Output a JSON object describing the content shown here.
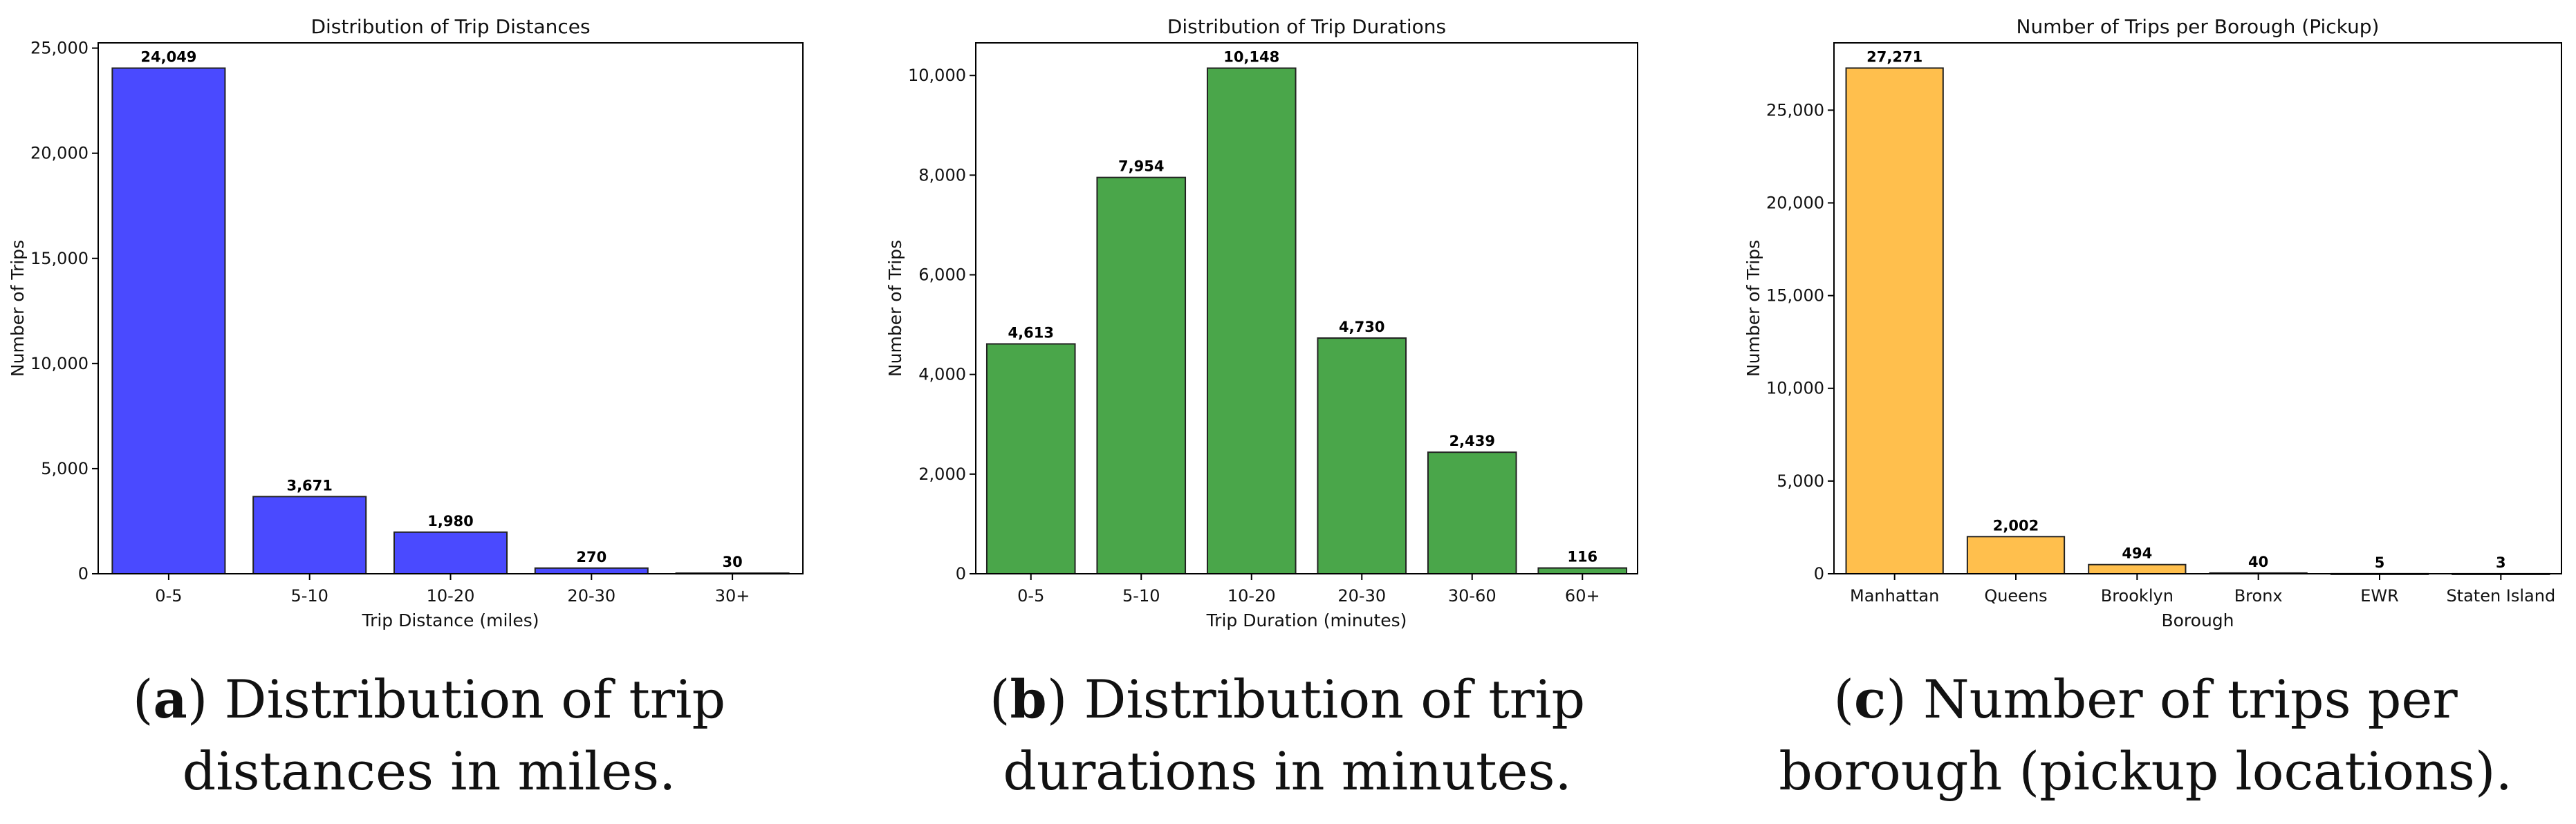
{
  "panels": [
    {
      "caption": {
        "letter": "a",
        "text": "Distribution of trip distances in miles."
      },
      "chart_data": {
        "type": "bar",
        "title": "Distribution of Trip Distances",
        "xlabel": "Trip Distance (miles)",
        "ylabel": "Number of Trips",
        "categories": [
          "0-5",
          "5-10",
          "10-20",
          "20-30",
          "30+"
        ],
        "values": [
          24049,
          3671,
          1980,
          270,
          30
        ],
        "value_labels": [
          "24,049",
          "3,671",
          "1,980",
          "270",
          "30"
        ],
        "yticks": [
          0,
          5000,
          10000,
          15000,
          20000,
          25000
        ],
        "ytick_labels": [
          "0",
          "5,000",
          "10,000",
          "15,000",
          "20,000",
          "25,000"
        ],
        "ylim": [
          0,
          25250
        ],
        "bar_color": "#4a4aff",
        "grid": false
      }
    },
    {
      "caption": {
        "letter": "b",
        "text": "Distribution of trip durations in minutes."
      },
      "chart_data": {
        "type": "bar",
        "title": "Distribution of Trip Durations",
        "xlabel": "Trip Duration (minutes)",
        "ylabel": "Number of Trips",
        "categories": [
          "0-5",
          "5-10",
          "10-20",
          "20-30",
          "30-60",
          "60+"
        ],
        "values": [
          4613,
          7954,
          10148,
          4730,
          2439,
          116
        ],
        "value_labels": [
          "4,613",
          "7,954",
          "10,148",
          "4,730",
          "2,439",
          "116"
        ],
        "yticks": [
          0,
          2000,
          4000,
          6000,
          8000,
          10000
        ],
        "ytick_labels": [
          "0",
          "2,000",
          "4,000",
          "6,000",
          "8,000",
          "10,000"
        ],
        "ylim": [
          0,
          10655
        ],
        "bar_color": "#4aa64a",
        "grid": false
      }
    },
    {
      "caption": {
        "letter": "c",
        "text": "Number of trips per borough (pickup locations)."
      },
      "chart_data": {
        "type": "bar",
        "title": "Number of Trips per Borough (Pickup)",
        "xlabel": "Borough",
        "ylabel": "Number of Trips",
        "categories": [
          "Manhattan",
          "Queens",
          "Brooklyn",
          "Bronx",
          "EWR",
          "Staten Island"
        ],
        "values": [
          27271,
          2002,
          494,
          40,
          5,
          3
        ],
        "value_labels": [
          "27,271",
          "2,002",
          "494",
          "40",
          "5",
          "3"
        ],
        "yticks": [
          0,
          5000,
          10000,
          15000,
          20000,
          25000
        ],
        "ytick_labels": [
          "0",
          "5,000",
          "10,000",
          "15,000",
          "20,000",
          "25,000"
        ],
        "ylim": [
          0,
          28630
        ],
        "bar_color": "#ffbf4d",
        "grid": false
      }
    }
  ]
}
